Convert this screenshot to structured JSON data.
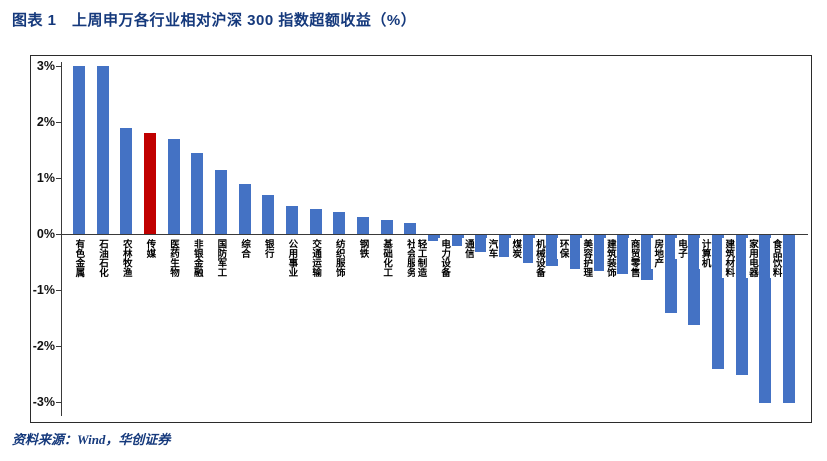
{
  "header": {
    "title": "图表 1　上周申万各行业相对沪深 300 指数超额收益（%）"
  },
  "footer": {
    "source": "资料来源：Wind，华创证券"
  },
  "colors": {
    "bar": "#4472c4",
    "highlight": "#c00000",
    "title_text": "#15397c",
    "axis": "#3a3a3a"
  },
  "chart_data": {
    "type": "bar",
    "title": "上周申万各行业相对沪深 300 指数超额收益（%）",
    "xlabel": "",
    "ylabel": "",
    "ylim": [
      -3,
      3
    ],
    "ytick_values": [
      3,
      2,
      1,
      0,
      -1,
      -2,
      -3
    ],
    "ytick_labels": [
      "3%",
      "2%",
      "1%",
      "0%",
      "-1%",
      "-2%",
      "-3%"
    ],
    "grid": false,
    "legend": false,
    "bar_color": "#4472c4",
    "highlight": {
      "category": "传媒",
      "color": "#c00000"
    },
    "categories": [
      "有色金属",
      "石油石化",
      "农林牧渔",
      "传媒",
      "医药生物",
      "非银金融",
      "国防军工",
      "综合",
      "银行",
      "公用事业",
      "交通运输",
      "纺织服饰",
      "钢铁",
      "基础化工",
      "社会服务",
      "轻工制造",
      "电力设备",
      "通信",
      "汽车",
      "煤炭",
      "机械设备",
      "环保",
      "美容护理",
      "建筑装饰",
      "商贸零售",
      "房地产",
      "电子",
      "计算机",
      "建筑材料",
      "家用电器",
      "食品饮料"
    ],
    "values": [
      3.0,
      3.0,
      1.9,
      1.8,
      1.7,
      1.45,
      1.15,
      0.9,
      0.7,
      0.5,
      0.45,
      0.4,
      0.3,
      0.25,
      0.2,
      -0.1,
      -0.2,
      -0.3,
      -0.4,
      -0.5,
      -0.55,
      -0.6,
      -0.65,
      -0.7,
      -0.8,
      -1.4,
      -1.6,
      -2.4,
      -2.5,
      -3.0,
      -3.0
    ]
  }
}
